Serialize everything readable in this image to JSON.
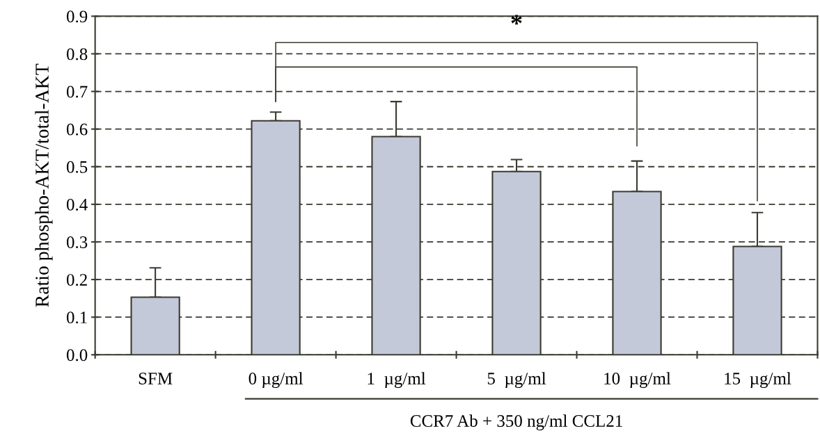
{
  "chart_data": {
    "type": "bar",
    "ylabel": "Ratio phospho-AKT/total-AKT",
    "xlabel": "CCR7 Ab + 350 ng/ml CCL21",
    "categories": [
      "SFM",
      "0 µg/ml",
      "1  µg/ml",
      "5  µg/ml",
      "10  µg/ml",
      "15  µg/ml"
    ],
    "values": [
      0.153,
      0.622,
      0.58,
      0.487,
      0.434,
      0.288
    ],
    "errors": [
      [
        0.153,
        0.231
      ],
      [
        0.622,
        0.645
      ],
      [
        0.58,
        0.673
      ],
      [
        0.487,
        0.519
      ],
      [
        0.434,
        0.515
      ],
      [
        0.288,
        0.378
      ]
    ],
    "color": "#c3c9d8",
    "ylim": [
      0,
      0.9
    ],
    "yticks": [
      {
        "value": 0,
        "label": "0.0"
      },
      0.1,
      0.2,
      0.3,
      0.4,
      0.5,
      0.6,
      0.7,
      0.8,
      0.9
    ],
    "grid": "y",
    "annotations": [
      "*"
    ]
  }
}
